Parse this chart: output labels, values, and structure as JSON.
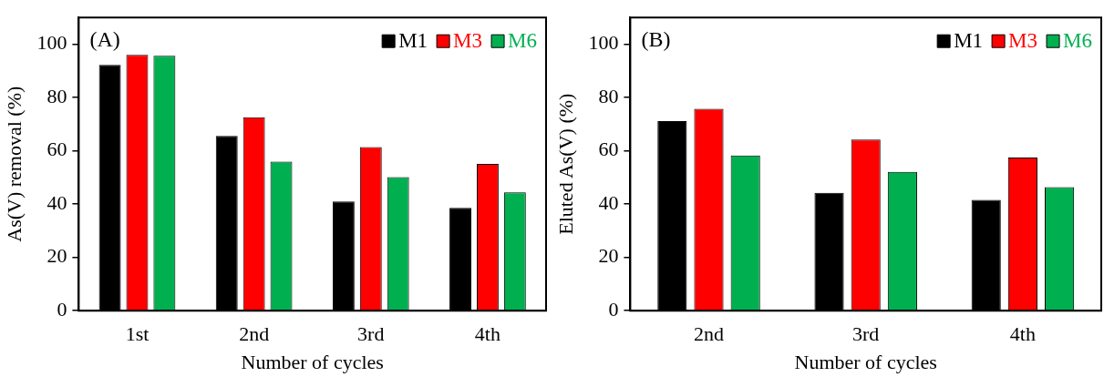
{
  "chart_data": [
    {
      "type": "bar",
      "xlabel": "Number of cycles",
      "ylabel": "As(V) removal (%)",
      "categories": [
        "1st",
        "2nd",
        "3rd",
        "4th"
      ],
      "series": [
        {
          "name": "M1",
          "color": "#000000",
          "values": [
            92.2,
            65.6,
            41.0,
            38.6
          ]
        },
        {
          "name": "M3",
          "color": "#ff0000",
          "values": [
            96.0,
            72.6,
            61.4,
            55.1
          ]
        },
        {
          "name": "M6",
          "color": "#00b050",
          "values": [
            95.6,
            55.9,
            50.1,
            44.4
          ]
        }
      ],
      "ylim": [
        0,
        110
      ],
      "yticks": [
        0,
        20,
        40,
        60,
        80,
        100
      ],
      "grid": false,
      "legend": "top right",
      "annotations": [
        "(A)"
      ]
    },
    {
      "type": "bar",
      "xlabel": "Number of cycles",
      "ylabel": "Eluted As(V) (%)",
      "categories": [
        "2nd",
        "3rd",
        "4th"
      ],
      "series": [
        {
          "name": "M1",
          "color": "#000000",
          "values": [
            71.1,
            44.2,
            41.6
          ]
        },
        {
          "name": "M3",
          "color": "#ff0000",
          "values": [
            75.7,
            64.2,
            57.5
          ]
        },
        {
          "name": "M6",
          "color": "#00b050",
          "values": [
            58.2,
            52.1,
            46.4
          ]
        }
      ],
      "ylim": [
        0,
        110
      ],
      "yticks": [
        0,
        20,
        40,
        60,
        80,
        100
      ],
      "grid": false,
      "legend": "top right",
      "annotations": [
        "(B)"
      ]
    }
  ]
}
